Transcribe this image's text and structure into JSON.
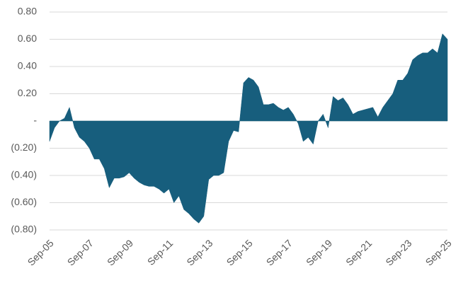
{
  "chart_data": {
    "type": "area",
    "color": "#175e7d",
    "grid": true,
    "x": [
      "Sep-05",
      "Dec-05",
      "Mar-06",
      "Jun-06",
      "Sep-06",
      "Dec-06",
      "Mar-07",
      "Jun-07",
      "Sep-07",
      "Dec-07",
      "Mar-08",
      "Jun-08",
      "Sep-08",
      "Dec-08",
      "Mar-09",
      "Jun-09",
      "Sep-09",
      "Dec-09",
      "Mar-10",
      "Jun-10",
      "Sep-10",
      "Dec-10",
      "Mar-11",
      "Jun-11",
      "Sep-11",
      "Dec-11",
      "Mar-12",
      "Jun-12",
      "Sep-12",
      "Dec-12",
      "Mar-13",
      "Jun-13",
      "Sep-13",
      "Dec-13",
      "Mar-14",
      "Jun-14",
      "Sep-14",
      "Dec-14",
      "Mar-15",
      "Jun-15",
      "Sep-15",
      "Dec-15",
      "Mar-16",
      "Jun-16",
      "Sep-16",
      "Dec-16",
      "Mar-17",
      "Jun-17",
      "Sep-17",
      "Dec-17",
      "Mar-18",
      "Jun-18",
      "Sep-18",
      "Dec-18",
      "Mar-19",
      "Jun-19",
      "Sep-19",
      "Dec-19",
      "Mar-20",
      "Jun-20",
      "Sep-20",
      "Dec-20",
      "Mar-21",
      "Jun-21",
      "Sep-21",
      "Dec-21",
      "Mar-22",
      "Jun-22",
      "Sep-22",
      "Dec-22",
      "Mar-23",
      "Jun-23",
      "Sep-23",
      "Dec-23",
      "Mar-24",
      "Jun-24",
      "Sep-24",
      "Dec-24",
      "Mar-25",
      "Jun-25",
      "Sep-25"
    ],
    "values": [
      -0.15,
      -0.05,
      0.0,
      0.02,
      0.1,
      -0.05,
      -0.12,
      -0.15,
      -0.2,
      -0.28,
      -0.28,
      -0.35,
      -0.49,
      -0.42,
      -0.42,
      -0.41,
      -0.38,
      -0.42,
      -0.45,
      -0.47,
      -0.48,
      -0.48,
      -0.5,
      -0.53,
      -0.5,
      -0.6,
      -0.55,
      -0.65,
      -0.68,
      -0.72,
      -0.75,
      -0.7,
      -0.43,
      -0.4,
      -0.4,
      -0.38,
      -0.15,
      -0.07,
      -0.08,
      0.28,
      0.32,
      0.3,
      0.25,
      0.12,
      0.12,
      0.13,
      0.1,
      0.08,
      0.1,
      0.05,
      -0.02,
      -0.15,
      -0.12,
      -0.17,
      0.0,
      0.05,
      -0.05,
      0.18,
      0.15,
      0.17,
      0.12,
      0.05,
      0.07,
      0.08,
      0.09,
      0.1,
      0.03,
      0.1,
      0.15,
      0.2,
      0.3,
      0.3,
      0.35,
      0.45,
      0.48,
      0.5,
      0.5,
      0.53,
      0.5,
      0.64,
      0.6
    ],
    "xticks": [
      "Sep-05",
      "Sep-07",
      "Sep-09",
      "Sep-11",
      "Sep-13",
      "Sep-15",
      "Sep-17",
      "Sep-19",
      "Sep-21",
      "Sep-23",
      "Sep-25"
    ],
    "ylim": [
      -0.8,
      0.8
    ],
    "yticks": [
      {
        "value": 0.8,
        "label": "0.80"
      },
      {
        "value": 0.6,
        "label": "0.60"
      },
      {
        "value": 0.4,
        "label": "0.40"
      },
      {
        "value": 0.2,
        "label": "0.20"
      },
      {
        "value": 0,
        "label": "-"
      },
      {
        "value": -0.2,
        "label": "(0.20)"
      },
      {
        "value": -0.4,
        "label": "(0.40)"
      },
      {
        "value": -0.6,
        "label": "(0.60)"
      },
      {
        "value": -0.8,
        "label": "(0.80)"
      }
    ]
  }
}
